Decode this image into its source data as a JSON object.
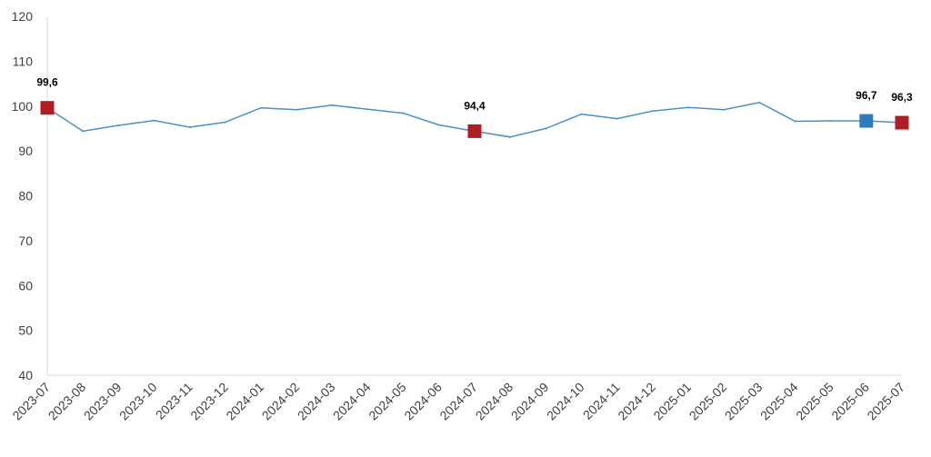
{
  "chart_data": {
    "type": "line",
    "title": "",
    "xlabel": "",
    "ylabel": "",
    "ylim": [
      40,
      120
    ],
    "yticks": [
      40,
      50,
      60,
      70,
      80,
      90,
      100,
      110,
      120
    ],
    "grid": false,
    "legend": "none",
    "x": [
      "2023-07",
      "2023-08",
      "2023-09",
      "2023-10",
      "2023-11",
      "2023-12",
      "2024-01",
      "2024-02",
      "2024-03",
      "2024-04",
      "2024-05",
      "2024-06",
      "2024-07",
      "2024-08",
      "2024-09",
      "2024-10",
      "2024-11",
      "2024-12",
      "2025-01",
      "2025-02",
      "2025-03",
      "2025-04",
      "2025-05",
      "2025-06",
      "2025-07"
    ],
    "series": [
      {
        "values": [
          99.6,
          94.4,
          95.7,
          96.8,
          95.3,
          96.4,
          99.6,
          99.2,
          100.2,
          99.3,
          98.4,
          95.8,
          94.4,
          93.1,
          95.0,
          98.2,
          97.2,
          98.9,
          99.7,
          99.2,
          100.8,
          96.6,
          96.7,
          96.7,
          96.3
        ],
        "color": "#4a90c8"
      }
    ],
    "highlighted_points": [
      {
        "index": 0,
        "label": "99,6",
        "color": "#b01c24"
      },
      {
        "index": 12,
        "label": "94,4",
        "color": "#b01c24"
      },
      {
        "index": 23,
        "label": "96,7",
        "color": "#2e7bc0"
      },
      {
        "index": 24,
        "label": "96,3",
        "color": "#b01c24"
      }
    ],
    "axis_color": "#d9d9d9"
  }
}
